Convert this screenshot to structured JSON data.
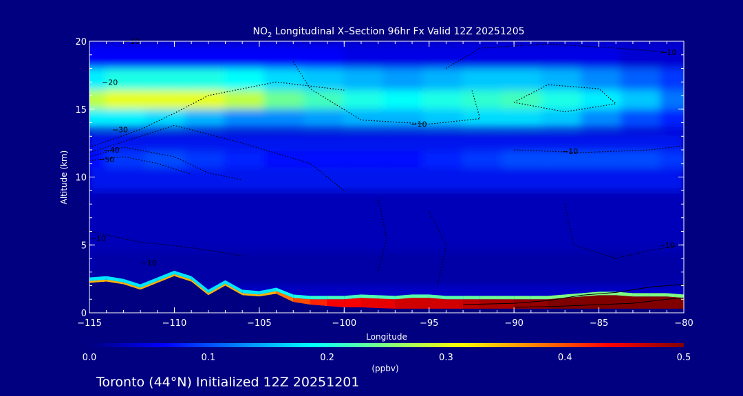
{
  "chart_data": {
    "type": "heatmap",
    "title": "NO",
    "title_sub": "2",
    "title_rest": " Longitudinal X–Section 96hr  Fx Valid 12Z 20251205",
    "xlabel": "Longitude",
    "ylabel": "Altitude (km)",
    "xlim": [
      -115,
      -80
    ],
    "ylim": [
      0,
      20
    ],
    "x_ticks": [
      -115,
      -110,
      -105,
      -100,
      -95,
      -90,
      -85,
      -80
    ],
    "x_tick_labels": [
      "−115",
      "−110",
      "−105",
      "−100",
      "−95",
      "−90",
      "−85",
      "−80"
    ],
    "y_ticks": [
      0,
      5,
      10,
      15,
      20
    ],
    "y_tick_labels": [
      "0",
      "5",
      "10",
      "15",
      "20"
    ],
    "colorbar": {
      "label": "(ppbv)",
      "min": 0.0,
      "max": 0.5,
      "ticks": [
        0.0,
        0.1,
        0.2,
        0.3,
        0.4,
        0.5
      ],
      "tick_labels": [
        "0.0",
        "0.1",
        "0.2",
        "0.3",
        "0.4",
        "0.5"
      ],
      "colormap": [
        "#000080",
        "#0000ff",
        "#0080ff",
        "#00ffff",
        "#80ff80",
        "#ffff00",
        "#ff8000",
        "#ff0000",
        "#800000"
      ]
    },
    "layers": [
      {
        "alt": 16.0,
        "width": 1.0,
        "values": [
          0.28,
          0.3,
          0.3,
          0.3,
          0.28,
          0.24,
          0.22,
          0.2,
          0.19,
          0.2,
          0.21,
          0.22,
          0.2,
          0.18,
          0.16,
          0.12
        ]
      },
      {
        "alt": 17.2,
        "width": 0.8,
        "values": [
          0.18,
          0.2,
          0.2,
          0.2,
          0.19,
          0.17,
          0.16,
          0.15,
          0.14,
          0.15,
          0.16,
          0.16,
          0.15,
          0.13,
          0.11,
          0.09
        ]
      },
      {
        "alt": 14.8,
        "width": 1.2,
        "values": [
          0.18,
          0.18,
          0.17,
          0.15,
          0.13,
          0.13,
          0.14,
          0.15,
          0.15,
          0.16,
          0.17,
          0.17,
          0.16,
          0.13,
          0.1,
          0.08
        ]
      },
      {
        "alt": 11.3,
        "width": 0.6,
        "values": [
          0.07,
          0.09,
          0.1,
          0.09,
          0.08,
          0.07,
          0.07,
          0.07,
          0.07,
          0.08,
          0.09,
          0.1,
          0.1,
          0.1,
          0.1,
          0.09
        ]
      },
      {
        "alt": 18.8,
        "width": 0.9,
        "values": [
          0.06,
          0.06,
          0.06,
          0.06,
          0.06,
          0.06,
          0.06,
          0.05,
          0.05,
          0.05,
          0.05,
          0.05,
          0.05,
          0.05,
          0.04,
          0.04
        ]
      }
    ],
    "bottom_layer": {
      "x": [
        -115,
        -114,
        -113,
        -112,
        -111,
        -110,
        -109,
        -108,
        -107,
        -106,
        -105,
        -104,
        -103,
        -102,
        -101,
        -100,
        -99,
        -98,
        -97,
        -96,
        -95,
        -94,
        -93,
        -92,
        -91,
        -90,
        -89,
        -88,
        -87,
        -86,
        -85,
        -84,
        -83,
        -82,
        -81,
        -80
      ],
      "terrain": [
        2.2,
        2.3,
        2.1,
        1.7,
        2.2,
        2.7,
        2.3,
        1.3,
        2.0,
        1.3,
        1.2,
        1.4,
        0.8,
        0.6,
        0.5,
        0.4,
        0.4,
        0.35,
        0.3,
        0.3,
        0.3,
        0.3,
        0.3,
        0.3,
        0.3,
        0.3,
        0.3,
        0.3,
        0.3,
        0.3,
        0.3,
        0.3,
        0.3,
        0.3,
        0.3,
        0.3
      ],
      "thickness": [
        0.15,
        0.15,
        0.15,
        0.15,
        0.15,
        0.15,
        0.15,
        0.15,
        0.15,
        0.15,
        0.15,
        0.2,
        0.3,
        0.4,
        0.5,
        0.6,
        0.7,
        0.7,
        0.7,
        0.8,
        0.8,
        0.7,
        0.7,
        0.7,
        0.7,
        0.7,
        0.7,
        0.7,
        0.8,
        0.9,
        1.0,
        1.0,
        0.9,
        0.9,
        0.9,
        0.8
      ],
      "value": [
        0.35,
        0.35,
        0.35,
        0.35,
        0.35,
        0.35,
        0.35,
        0.35,
        0.35,
        0.35,
        0.35,
        0.38,
        0.4,
        0.42,
        0.44,
        0.44,
        0.45,
        0.45,
        0.46,
        0.46,
        0.46,
        0.46,
        0.47,
        0.48,
        0.48,
        0.49,
        0.49,
        0.5,
        0.5,
        0.5,
        0.5,
        0.5,
        0.5,
        0.5,
        0.5,
        0.5
      ]
    },
    "contour_labels": [
      {
        "text": "−10",
        "lon": -112.5,
        "alt": 20.0
      },
      {
        "text": "−20",
        "lon": -113.8,
        "alt": 17.0
      },
      {
        "text": "−30",
        "lon": -113.2,
        "alt": 13.5
      },
      {
        "text": "−40",
        "lon": -113.7,
        "alt": 12.0
      },
      {
        "text": "−50",
        "lon": -114.0,
        "alt": 11.3
      },
      {
        "text": "−10",
        "lon": -95.6,
        "alt": 13.9
      },
      {
        "text": "−10",
        "lon": -86.7,
        "alt": 11.9
      },
      {
        "text": "−10",
        "lon": -80.9,
        "alt": 19.2
      },
      {
        "text": "−10",
        "lon": -114.5,
        "alt": 5.5
      },
      {
        "text": "−10",
        "lon": -111.5,
        "alt": 3.7
      },
      {
        "text": "−10",
        "lon": -81.0,
        "alt": 5.0
      }
    ],
    "footer": "Toronto (44°N) Initialized 12Z 20251201"
  }
}
